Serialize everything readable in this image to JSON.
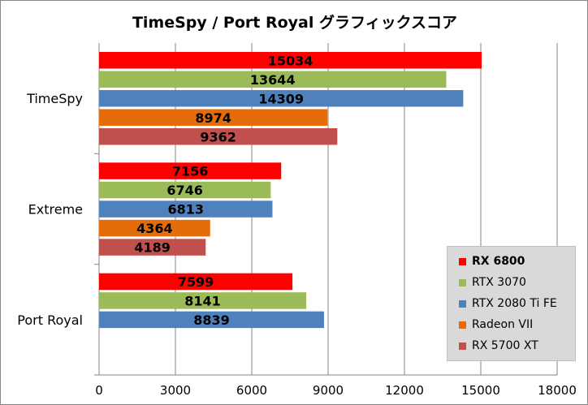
{
  "chart_data": {
    "type": "bar",
    "orientation": "horizontal",
    "title": "TimeSpy / Port Royal グラフィックスコア",
    "categories": [
      "TimeSpy",
      "Extreme",
      "Port Royal"
    ],
    "xlim": [
      0,
      18000
    ],
    "x_ticks": [
      "0",
      "3000",
      "6000",
      "9000",
      "12000",
      "15000",
      "18000"
    ],
    "grid": true,
    "legend_position": "bottom-right",
    "series": [
      {
        "name": "RX 6800",
        "color": "#ff0000",
        "values": [
          15034,
          7156,
          7599
        ],
        "legend_bold": true
      },
      {
        "name": "RTX 3070",
        "color": "#9bbb59",
        "values": [
          13644,
          6746,
          8141
        ]
      },
      {
        "name": "RTX 2080 Ti FE",
        "color": "#4f81bd",
        "values": [
          14309,
          6813,
          8839
        ]
      },
      {
        "name": "Radeon VII",
        "color": "#e46c0a",
        "values": [
          8974,
          4364,
          null
        ]
      },
      {
        "name": "RX 5700 XT",
        "color": "#c0504d",
        "values": [
          9362,
          4189,
          null
        ]
      }
    ]
  }
}
